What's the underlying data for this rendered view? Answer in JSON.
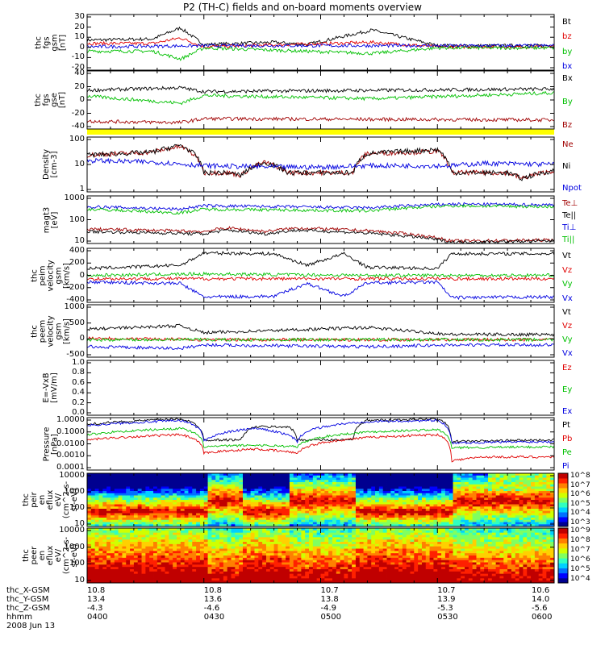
{
  "title": "P2 (TH-C) fields and on-board moments overview",
  "chart_data": [
    {
      "id": "fgs_gsm",
      "type": "line",
      "ylabel": "thc\nfgs\ngsm\n[nT]",
      "yticks": [
        "30",
        "20",
        "10",
        "0",
        "-10",
        "-20"
      ],
      "ylim": [
        -20,
        30
      ],
      "series": [
        {
          "name": "Bt",
          "color": "#000000",
          "points": [
            [
              0,
              7
            ],
            [
              0.14,
              8
            ],
            [
              0.2,
              18
            ],
            [
              0.25,
              3
            ],
            [
              0.4,
              5
            ],
            [
              0.47,
              3
            ],
            [
              0.61,
              16
            ],
            [
              0.75,
              2
            ],
            [
              1,
              2
            ]
          ]
        },
        {
          "name": "bz",
          "color": "#e00000",
          "points": [
            [
              0,
              4
            ],
            [
              0.14,
              4
            ],
            [
              0.2,
              9
            ],
            [
              0.25,
              1
            ],
            [
              0.61,
              5
            ],
            [
              0.75,
              1
            ],
            [
              1,
              1
            ]
          ]
        },
        {
          "name": "by",
          "color": "#00c000",
          "points": [
            [
              0,
              -3
            ],
            [
              0.14,
              -3
            ],
            [
              0.2,
              -10
            ],
            [
              0.25,
              0
            ],
            [
              0.61,
              -5
            ],
            [
              0.75,
              0
            ],
            [
              1,
              0
            ]
          ]
        },
        {
          "name": "bx",
          "color": "#0000e0",
          "points": [
            [
              0,
              1
            ],
            [
              0.25,
              2
            ],
            [
              1,
              2
            ]
          ]
        }
      ]
    },
    {
      "id": "fgs_gse",
      "type": "line",
      "ylabel": "thc\nfgs\ngse\n[nT]",
      "yticks": [
        "40",
        "20",
        "0",
        "-20",
        "-40"
      ],
      "ylim": [
        -50,
        40
      ],
      "series": [
        {
          "name": "Bx",
          "color": "#000000",
          "points": [
            [
              0,
              10
            ],
            [
              0.2,
              14
            ],
            [
              0.25,
              8
            ],
            [
              1,
              12
            ]
          ]
        },
        {
          "name": "By",
          "color": "#00c000",
          "points": [
            [
              0,
              1
            ],
            [
              0.2,
              -10
            ],
            [
              0.25,
              2
            ],
            [
              0.61,
              -3
            ],
            [
              1,
              6
            ]
          ]
        },
        {
          "name": "Bz",
          "color": "#a00000",
          "points": [
            [
              0,
              -38
            ],
            [
              0.2,
              -40
            ],
            [
              0.25,
              -34
            ],
            [
              1,
              -36
            ]
          ]
        }
      ]
    },
    {
      "id": "density",
      "type": "line",
      "ylabel": "Density\n[cm-3]",
      "yticks": [
        "100",
        "10",
        "1"
      ],
      "ylim": [
        1,
        100
      ],
      "log": true,
      "series": [
        {
          "name": "Ne",
          "color": "#a00000",
          "points": [
            [
              0,
              22
            ],
            [
              0.14,
              28
            ],
            [
              0.2,
              45
            ],
            [
              0.25,
              5
            ],
            [
              0.3,
              5
            ],
            [
              0.33,
              4
            ],
            [
              0.38,
              12
            ],
            [
              0.43,
              5
            ],
            [
              0.57,
              5
            ],
            [
              0.6,
              25
            ],
            [
              0.75,
              30
            ],
            [
              0.78,
              5
            ],
            [
              0.9,
              5
            ],
            [
              0.93,
              3
            ],
            [
              1,
              6
            ]
          ]
        },
        {
          "name": "Ni",
          "color": "#000000",
          "points": [
            [
              0,
              22
            ],
            [
              0.14,
              28
            ],
            [
              0.2,
              50
            ],
            [
              0.25,
              5
            ],
            [
              0.3,
              5
            ],
            [
              0.33,
              4
            ],
            [
              0.38,
              12
            ],
            [
              0.43,
              5
            ],
            [
              0.57,
              5
            ],
            [
              0.6,
              25
            ],
            [
              0.75,
              35
            ],
            [
              0.78,
              5
            ],
            [
              0.9,
              5
            ],
            [
              0.93,
              3
            ],
            [
              1,
              6
            ]
          ]
        },
        {
          "name": "Npot",
          "color": "#0000e0",
          "points": [
            [
              0,
              14
            ],
            [
              0.15,
              12
            ],
            [
              0.25,
              9
            ],
            [
              0.4,
              8
            ],
            [
              0.5,
              8
            ],
            [
              0.6,
              9
            ],
            [
              0.78,
              9
            ],
            [
              0.85,
              11
            ],
            [
              1,
              10
            ]
          ]
        }
      ]
    },
    {
      "id": "temperature",
      "type": "line",
      "ylabel": "magt3\n[eV]",
      "yticks": [
        "1000",
        "100",
        "10"
      ],
      "ylim": [
        5,
        3000
      ],
      "log": true,
      "series": [
        {
          "name": "Te⊥",
          "color": "#a00000",
          "points": [
            [
              0,
              35
            ],
            [
              0.25,
              25
            ],
            [
              0.3,
              40
            ],
            [
              0.38,
              25
            ],
            [
              0.45,
              40
            ],
            [
              0.6,
              28
            ],
            [
              0.78,
              7
            ],
            [
              1,
              8
            ]
          ]
        },
        {
          "name": "Te||",
          "color": "#000000",
          "points": [
            [
              0,
              25
            ],
            [
              0.25,
              18
            ],
            [
              0.3,
              30
            ],
            [
              0.38,
              18
            ],
            [
              0.45,
              30
            ],
            [
              0.6,
              20
            ],
            [
              0.78,
              6
            ],
            [
              1,
              7
            ]
          ]
        },
        {
          "name": "Ti⊥",
          "color": "#0000e0",
          "points": [
            [
              0,
              700
            ],
            [
              0.2,
              500
            ],
            [
              0.25,
              800
            ],
            [
              0.6,
              600
            ],
            [
              0.78,
              1000
            ],
            [
              1,
              900
            ]
          ]
        },
        {
          "name": "Ti||",
          "color": "#00c000",
          "points": [
            [
              0,
              500
            ],
            [
              0.2,
              300
            ],
            [
              0.25,
              500
            ],
            [
              0.6,
              400
            ],
            [
              0.78,
              800
            ],
            [
              1,
              700
            ]
          ]
        }
      ]
    },
    {
      "id": "peim_velocity",
      "type": "line",
      "ylabel": "thc\npeim\nvelocity\ngsm\n[km/s]",
      "yticks": [
        "400",
        "200",
        "0",
        "-200",
        "-400"
      ],
      "ylim": [
        -400,
        400
      ],
      "series": [
        {
          "name": "Vt",
          "color": "#000000",
          "points": [
            [
              0,
              100
            ],
            [
              0.2,
              150
            ],
            [
              0.25,
              330
            ],
            [
              0.4,
              320
            ],
            [
              0.47,
              150
            ],
            [
              0.55,
              320
            ],
            [
              0.6,
              120
            ],
            [
              0.75,
              100
            ],
            [
              0.78,
              320
            ],
            [
              1,
              320
            ]
          ]
        },
        {
          "name": "Vz",
          "color": "#e00000",
          "points": [
            [
              0,
              -50
            ],
            [
              0.25,
              -50
            ],
            [
              0.6,
              -50
            ],
            [
              1,
              -50
            ]
          ]
        },
        {
          "name": "Vy",
          "color": "#00c000",
          "points": [
            [
              0,
              0
            ],
            [
              0.25,
              20
            ],
            [
              0.6,
              0
            ],
            [
              1,
              0
            ]
          ]
        },
        {
          "name": "Vx",
          "color": "#0000e0",
          "points": [
            [
              0,
              -100
            ],
            [
              0.2,
              -120
            ],
            [
              0.25,
              -320
            ],
            [
              0.4,
              -310
            ],
            [
              0.47,
              -120
            ],
            [
              0.55,
              -310
            ],
            [
              0.6,
              -110
            ],
            [
              0.75,
              -100
            ],
            [
              0.78,
              -330
            ],
            [
              1,
              -320
            ]
          ]
        }
      ]
    },
    {
      "id": "peem_velocity",
      "type": "line",
      "ylabel": "thc\npeem\nvelocity\ngsm\n[km/s]",
      "yticks": [
        "1000",
        "500",
        "0",
        "-500"
      ],
      "ylim": [
        -500,
        1000
      ],
      "series": [
        {
          "name": "Vt",
          "color": "#000000",
          "points": [
            [
              0,
              300
            ],
            [
              0.2,
              400
            ],
            [
              0.25,
              200
            ],
            [
              0.6,
              350
            ],
            [
              0.78,
              150
            ],
            [
              1,
              150
            ]
          ]
        },
        {
          "name": "Vz",
          "color": "#e00000",
          "points": [
            [
              0,
              50
            ],
            [
              0.25,
              0
            ],
            [
              1,
              0
            ]
          ]
        },
        {
          "name": "Vy",
          "color": "#00c000",
          "points": [
            [
              0,
              0
            ],
            [
              1,
              0
            ]
          ]
        },
        {
          "name": "Vx",
          "color": "#0000e0",
          "points": [
            [
              0,
              -200
            ],
            [
              0.2,
              -250
            ],
            [
              0.25,
              -150
            ],
            [
              0.6,
              -200
            ],
            [
              0.78,
              -150
            ],
            [
              1,
              -150
            ]
          ]
        }
      ]
    },
    {
      "id": "efield",
      "type": "line",
      "ylabel": "E=-VxB\n[mV/m]",
      "yticks": [
        "1.0",
        "0.8",
        "0.6",
        "0.4",
        "0.2",
        "0.0"
      ],
      "ylim": [
        0,
        1
      ],
      "series": [
        {
          "name": "Ez",
          "color": "#e00000",
          "points": []
        },
        {
          "name": "Ey",
          "color": "#00c000",
          "points": []
        },
        {
          "name": "Ex",
          "color": "#0000e0",
          "points": []
        }
      ]
    },
    {
      "id": "pressure",
      "type": "line",
      "ylabel": "Pressure\n[nPa]",
      "yticks": [
        "1.0000",
        "0.1000",
        "0.0100",
        "0.0010",
        "0.0001"
      ],
      "ylim": [
        0.0001,
        1
      ],
      "log": true,
      "series": [
        {
          "name": "Pt",
          "color": "#000000",
          "points": [
            [
              0,
              0.3
            ],
            [
              0.2,
              0.8
            ],
            [
              0.25,
              0.02
            ],
            [
              0.33,
              0.02
            ],
            [
              0.36,
              0.2
            ],
            [
              0.43,
              0.2
            ],
            [
              0.45,
              0.02
            ],
            [
              0.57,
              0.02
            ],
            [
              0.6,
              0.6
            ],
            [
              0.75,
              0.8
            ],
            [
              0.78,
              0.015
            ],
            [
              1,
              0.02
            ]
          ]
        },
        {
          "name": "Pb",
          "color": "#e00000",
          "points": [
            [
              0,
              0.02
            ],
            [
              0.2,
              0.05
            ],
            [
              0.25,
              0.002
            ],
            [
              0.36,
              0.004
            ],
            [
              0.45,
              0.002
            ],
            [
              0.6,
              0.03
            ],
            [
              0.75,
              0.05
            ],
            [
              0.78,
              0.0005
            ],
            [
              0.85,
              0.001
            ],
            [
              1,
              0.001
            ]
          ]
        },
        {
          "name": "Pe",
          "color": "#00c000",
          "points": [
            [
              0,
              0.05
            ],
            [
              0.2,
              0.15
            ],
            [
              0.25,
              0.006
            ],
            [
              0.36,
              0.008
            ],
            [
              0.45,
              0.006
            ],
            [
              0.6,
              0.08
            ],
            [
              0.75,
              0.12
            ],
            [
              0.78,
              0.005
            ],
            [
              1,
              0.006
            ]
          ]
        },
        {
          "name": "Pi",
          "color": "#0000e0",
          "points": [
            [
              0,
              0.25
            ],
            [
              0.2,
              0.6
            ],
            [
              0.25,
              0.015
            ],
            [
              0.36,
              0.15
            ],
            [
              0.45,
              0.015
            ],
            [
              0.6,
              0.5
            ],
            [
              0.75,
              0.6
            ],
            [
              0.78,
              0.012
            ],
            [
              1,
              0.015
            ]
          ]
        }
      ]
    },
    {
      "id": "peir_spec",
      "type": "heatmap",
      "ylabel": "thc\npeir\nen\neflux\neV/\n(cm^2-s-\nsr-eV)",
      "yticks": [
        "10000",
        "1000",
        "100",
        "10"
      ],
      "ylim": [
        5,
        25000
      ],
      "log": true,
      "colorbar_ticks": [
        "10^8",
        "10^7",
        "10^6",
        "10^5",
        "10^4",
        "10^3"
      ]
    },
    {
      "id": "peer_spec",
      "type": "heatmap",
      "ylabel": "thc\npeer\nen\neflux\neV/\n(cm^2-s-\nsr-eV)",
      "yticks": [
        "10000",
        "1000",
        "100",
        "10"
      ],
      "ylim": [
        5,
        25000
      ],
      "log": true,
      "colorbar_ticks": [
        "10^9",
        "10^8",
        "10^7",
        "10^6",
        "10^5",
        "10^4"
      ]
    }
  ],
  "ephemeris": {
    "labels": [
      "thc_X-GSM",
      "thc_Y-GSM",
      "thc_Z-GSM",
      "hhmm",
      "2008 Jun 13"
    ],
    "columns": [
      [
        "10.8",
        "13.4",
        "-4.3",
        "0400"
      ],
      [
        "10.8",
        "13.6",
        "-4.6",
        "0430"
      ],
      [
        "10.7",
        "13.8",
        "-4.9",
        "0500"
      ],
      [
        "10.7",
        "13.9",
        "-5.3",
        "0530"
      ],
      [
        "10.6",
        "14.0",
        "-5.6",
        "0600"
      ]
    ]
  },
  "colors": {
    "yellow_bar": "#ffff00",
    "frame": "#000000"
  }
}
